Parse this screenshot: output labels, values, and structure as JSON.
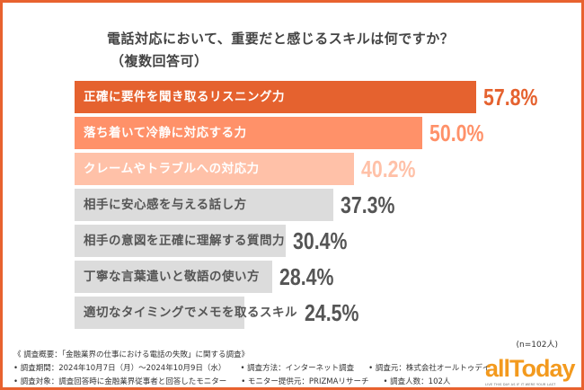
{
  "chart_data": {
    "type": "bar",
    "orientation": "horizontal",
    "title": "電話対応において、重要だと感じるスキルは何ですか？",
    "subtitle": "（複数回答可）",
    "categories": [
      "正確に要件を聞き取るリスニング力",
      "落ち着いて冷静に対応する力",
      "クレームやトラブルへの対応力",
      "相手に安心感を与える話し方",
      "相手の意図を正確に理解する質問力",
      "丁寧な言葉遣いと敬語の使い方",
      "適切なタイミングでメモを取るスキル"
    ],
    "values": [
      57.8,
      50.0,
      40.2,
      37.3,
      30.4,
      28.4,
      24.5
    ],
    "value_labels": [
      "57.8%",
      "50.0%",
      "40.2%",
      "37.3%",
      "30.4%",
      "28.4%",
      "24.5%"
    ],
    "bar_colors": [
      "#e5622f",
      "#ff9169",
      "#ffc1a8",
      "#dcdcdc",
      "#dcdcdc",
      "#dcdcdc",
      "#dcdcdc"
    ],
    "label_colors": [
      "#ffffff",
      "#ffffff",
      "#ffffff",
      "#555555",
      "#555555",
      "#555555",
      "#555555"
    ],
    "value_colors": [
      "#e5622f",
      "#ff9169",
      "#ffc1a8",
      "#555555",
      "#555555",
      "#555555",
      "#555555"
    ],
    "xlim": [
      0,
      57.8
    ],
    "grid": false
  },
  "sample_size": "(n=102人)",
  "notes": {
    "heading": "《 調査概要：「金融業界の仕事における電話の失敗」に関する調査》",
    "period": "• 調査期間：2024年10月7日（月）～2024年10月9日（水）",
    "method": "• 調査方法：インターネット調査",
    "source": "• 調査元：株式会社オールトゥデイ",
    "target": "• 調査対象：調査回答時に金融業界従事者と回答したモニター",
    "provider": "• モニター提供元：PRIZMAリサーチ",
    "count": "• 調査人数：102人"
  },
  "logo": {
    "text": "allToday",
    "tagline": "LIVE THIS DAY AS IF IT WERE YOUR LAST",
    "color": "#f39a1e"
  },
  "frame_color": "#e8622f"
}
